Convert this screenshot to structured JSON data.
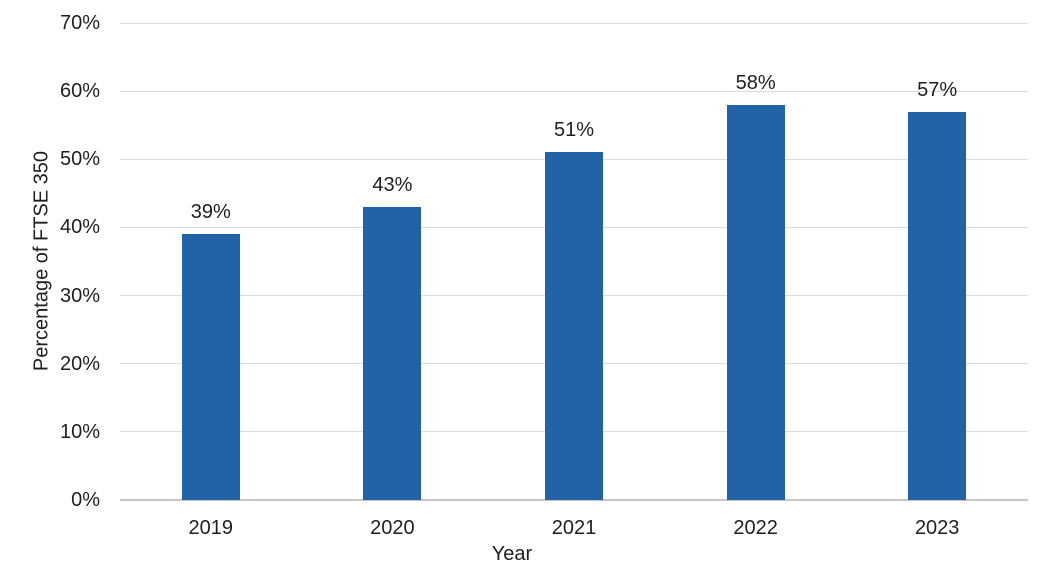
{
  "chart_data": {
    "type": "bar",
    "title": "",
    "categories": [
      "2019",
      "2020",
      "2021",
      "2022",
      "2023"
    ],
    "values": [
      39,
      43,
      51,
      58,
      57
    ],
    "data_labels": [
      "39%",
      "43%",
      "51%",
      "58%",
      "57%"
    ],
    "xlabel": "Year",
    "ylabel": "Percentage of FTSE 350",
    "ylim": [
      0,
      70
    ],
    "ytick_step": 10,
    "ytick_labels": [
      "0%",
      "10%",
      "20%",
      "30%",
      "40%",
      "50%",
      "60%",
      "70%"
    ],
    "grid": "horizontal",
    "legend": "none",
    "bar_color": "#2163A6",
    "gridline_color": "#DCDCDC",
    "axis_line_color": "#C6C6C6",
    "text_color": "#1F1F1F",
    "background": "#FFFFFF"
  }
}
